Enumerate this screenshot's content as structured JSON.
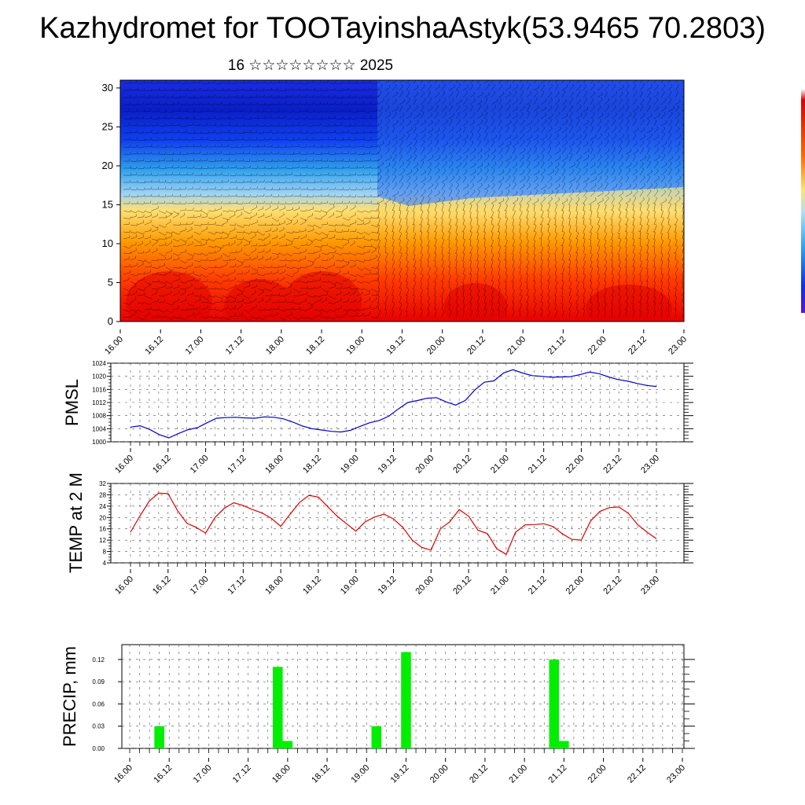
{
  "header": {
    "title": "Kazhydromet for TOOTayinshaAstyk(53.9465 70.2803)",
    "subtitle": "16 ☆☆☆☆☆☆☆☆ 2025"
  },
  "x_tick_labels": [
    "16.00",
    "16.12",
    "17.00",
    "17.12",
    "18.00",
    "18.12",
    "19.00",
    "19.12",
    "20.00",
    "20.12",
    "21.00",
    "21.12",
    "22.00",
    "22.12",
    "23.00"
  ],
  "colors": {
    "pressure_line": "#0000cc",
    "temperature_line": "#dd0000",
    "precip_bar": "#00ee00",
    "colorbar": [
      "#ffffff",
      "#e80000",
      "#ff8a00",
      "#ffe46e",
      "#2fa8ee",
      "#0a30ee",
      "#5a16d0"
    ]
  },
  "chart_data": [
    {
      "type": "heatmap",
      "title": "",
      "xlabel": "",
      "ylabel": "",
      "y_ticks": [
        0,
        5,
        10,
        15,
        20,
        25,
        30
      ],
      "ylim": [
        0,
        31
      ],
      "x_ticks": [
        "16.00",
        "16.12",
        "17.00",
        "17.12",
        "18.00",
        "18.12",
        "19.00",
        "19.12",
        "20.00",
        "20.12",
        "21.00",
        "21.12",
        "22.00",
        "22.12",
        "23.00"
      ],
      "overlay": "wind barbs"
    },
    {
      "type": "line",
      "ylabel": "PMSL",
      "ylim": [
        1000,
        1024
      ],
      "y_ticks": [
        1000,
        1004,
        1008,
        1012,
        1016,
        1020,
        1024
      ],
      "x_ticks": [
        "16.00",
        "16.12",
        "17.00",
        "17.12",
        "18.00",
        "18.12",
        "19.00",
        "19.12",
        "20.00",
        "20.12",
        "21.00",
        "21.12",
        "22.00",
        "22.12",
        "23.00"
      ],
      "grid": true,
      "series": [
        {
          "values": [
            1004.5,
            1004.9,
            1003.8,
            1002.2,
            1001.2,
            1002.5,
            1003.7,
            1004.3,
            1005.8,
            1007.2,
            1007.4,
            1007.5,
            1007.3,
            1007.2,
            1007.6,
            1007.5,
            1007.0,
            1006.0,
            1004.8,
            1004.0,
            1003.6,
            1003.2,
            1003.0,
            1003.5,
            1004.7,
            1005.8,
            1006.5,
            1007.8,
            1010.0,
            1012.0,
            1012.6,
            1013.3,
            1013.5,
            1012.2,
            1011.2,
            1012.6,
            1015.8,
            1018.2,
            1018.6,
            1021.0,
            1022.0,
            1021.0,
            1020.2,
            1020.0,
            1019.7,
            1019.8,
            1019.9,
            1020.5,
            1021.3,
            1020.8,
            1019.8,
            1019.0,
            1018.5,
            1017.8,
            1017.2,
            1016.9
          ]
        }
      ]
    },
    {
      "type": "line",
      "ylabel": "TEMP at 2 M",
      "ylim": [
        4,
        32
      ],
      "y_ticks": [
        4,
        8,
        12,
        16,
        20,
        24,
        28,
        32
      ],
      "x_ticks": [
        "16.00",
        "16.12",
        "17.00",
        "17.12",
        "18.00",
        "18.12",
        "19.00",
        "19.12",
        "20.00",
        "20.12",
        "21.00",
        "21.12",
        "22.00",
        "22.12",
        "23.00"
      ],
      "grid": true,
      "series": [
        {
          "values": [
            14.8,
            20.5,
            25.8,
            28.6,
            28.4,
            22.5,
            18.0,
            16.5,
            14.5,
            20.0,
            23.3,
            25.2,
            24.2,
            22.8,
            21.6,
            19.7,
            16.9,
            21.2,
            25.3,
            27.8,
            27.2,
            23.8,
            20.5,
            17.8,
            15.2,
            18.5,
            20.2,
            21.2,
            19.5,
            16.5,
            12.0,
            9.5,
            8.5,
            16.0,
            18.5,
            22.8,
            20.5,
            15.5,
            14.3,
            9.0,
            7.0,
            14.8,
            17.4,
            17.5,
            17.8,
            16.8,
            14.2,
            12.3,
            12.0,
            18.8,
            22.2,
            23.5,
            23.7,
            21.5,
            17.5,
            14.8,
            12.5
          ]
        }
      ]
    },
    {
      "type": "bar",
      "ylabel": "PRECIP, mm",
      "ylim": [
        0,
        0.14
      ],
      "y_ticks": [
        "0.00",
        "0.03",
        "0.06",
        "0.09",
        "0.12"
      ],
      "x_ticks": [
        "16.00",
        "16.12",
        "17.00",
        "17.12",
        "18.00",
        "18.12",
        "19.00",
        "19.12",
        "20.00",
        "20.12",
        "21.00",
        "21.12",
        "22.00",
        "22.12",
        "23.00"
      ],
      "grid": true,
      "bars": [
        {
          "x_hour": 9,
          "value": 0.03
        },
        {
          "x_hour": 45,
          "value": 0.11
        },
        {
          "x_hour": 48,
          "value": 0.01
        },
        {
          "x_hour": 75,
          "value": 0.03
        },
        {
          "x_hour": 84,
          "value": 0.13
        },
        {
          "x_hour": 129,
          "value": 0.12
        },
        {
          "x_hour": 132,
          "value": 0.01
        }
      ]
    }
  ]
}
